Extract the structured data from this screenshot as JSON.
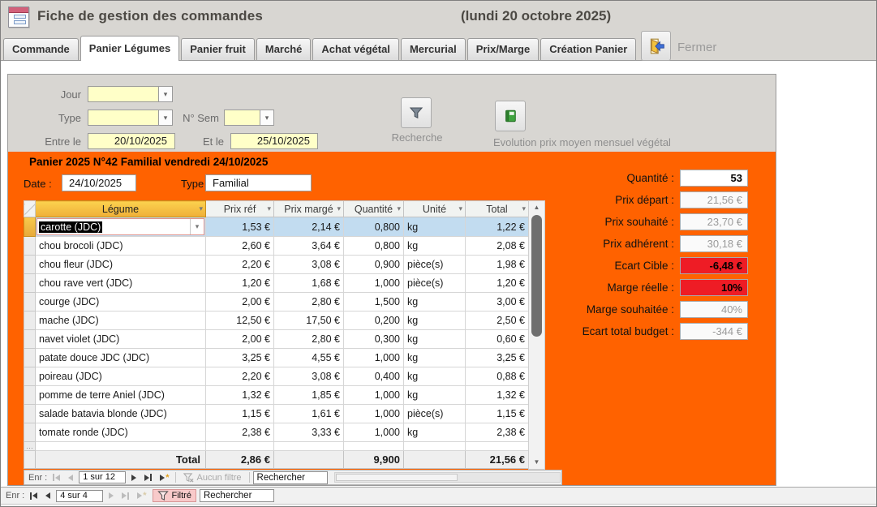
{
  "colors": {
    "accent_orange": "#FF6200",
    "field_yellow": "#FFFFC8",
    "alert_red": "#EE1C25",
    "header_gold": "#F2B93C",
    "selected_blue": "#C2DCF0"
  },
  "header": {
    "title": "Fiche de gestion des commandes",
    "date_note": "(lundi 20 octobre 2025)",
    "close_label": "Fermer"
  },
  "tabs": [
    {
      "label": "Commande",
      "active": false
    },
    {
      "label": "Panier Légumes",
      "active": true
    },
    {
      "label": "Panier fruit",
      "active": false
    },
    {
      "label": "Marché",
      "active": false
    },
    {
      "label": "Achat végétal",
      "active": false
    },
    {
      "label": "Mercurial",
      "active": false
    },
    {
      "label": "Prix/Marge",
      "active": false
    },
    {
      "label": "Création Panier",
      "active": false
    }
  ],
  "filters": {
    "jour_label": "Jour",
    "jour_value": "",
    "type_label": "Type",
    "type_value": "",
    "sem_label": "N° Sem",
    "sem_value": "",
    "entre_label": "Entre le",
    "entre_value": "20/10/2025",
    "et_label": "Et le",
    "et_value": "25/10/2025",
    "recherche_label": "Recherche",
    "evolution_label": "Evolution prix moyen mensuel végétal"
  },
  "panier": {
    "title": "Panier 2025 N°42 Familial vendredi 24/10/2025",
    "date_label": "Date :",
    "date_value": "24/10/2025",
    "type_label": "Type :",
    "type_value": "Familial"
  },
  "table": {
    "columns": [
      "Légume",
      "Prix réf",
      "Prix margé",
      "Quantité",
      "Unité",
      "Total"
    ],
    "rows": [
      {
        "legume": "carotte (JDC)",
        "prix_ref": "1,53 €",
        "prix_marge": "2,14 €",
        "quantite": "0,800",
        "unite": "kg",
        "total": "1,22 €",
        "selected": true
      },
      {
        "legume": "chou brocoli (JDC)",
        "prix_ref": "2,60 €",
        "prix_marge": "3,64 €",
        "quantite": "0,800",
        "unite": "kg",
        "total": "2,08 €",
        "selected": false
      },
      {
        "legume": "chou fleur (JDC)",
        "prix_ref": "2,20 €",
        "prix_marge": "3,08 €",
        "quantite": "0,900",
        "unite": "pièce(s)",
        "total": "1,98 €",
        "selected": false
      },
      {
        "legume": "chou rave vert (JDC)",
        "prix_ref": "1,20 €",
        "prix_marge": "1,68 €",
        "quantite": "1,000",
        "unite": "pièce(s)",
        "total": "1,20 €",
        "selected": false
      },
      {
        "legume": "courge (JDC)",
        "prix_ref": "2,00 €",
        "prix_marge": "2,80 €",
        "quantite": "1,500",
        "unite": "kg",
        "total": "3,00 €",
        "selected": false
      },
      {
        "legume": "mache (JDC)",
        "prix_ref": "12,50 €",
        "prix_marge": "17,50 €",
        "quantite": "0,200",
        "unite": "kg",
        "total": "2,50 €",
        "selected": false
      },
      {
        "legume": "navet violet (JDC)",
        "prix_ref": "2,00 €",
        "prix_marge": "2,80 €",
        "quantite": "0,300",
        "unite": "kg",
        "total": "0,60 €",
        "selected": false
      },
      {
        "legume": "patate douce JDC (JDC)",
        "prix_ref": "3,25 €",
        "prix_marge": "4,55 €",
        "quantite": "1,000",
        "unite": "kg",
        "total": "3,25 €",
        "selected": false
      },
      {
        "legume": "poireau (JDC)",
        "prix_ref": "2,20 €",
        "prix_marge": "3,08 €",
        "quantite": "0,400",
        "unite": "kg",
        "total": "0,88 €",
        "selected": false
      },
      {
        "legume": "pomme de terre Aniel (JDC)",
        "prix_ref": "1,32 €",
        "prix_marge": "1,85 €",
        "quantite": "1,000",
        "unite": "kg",
        "total": "1,32 €",
        "selected": false
      },
      {
        "legume": "salade batavia blonde (JDC)",
        "prix_ref": "1,15 €",
        "prix_marge": "1,61 €",
        "quantite": "1,000",
        "unite": "pièce(s)",
        "total": "1,15 €",
        "selected": false
      },
      {
        "legume": "tomate ronde (JDC)",
        "prix_ref": "2,38 €",
        "prix_marge": "3,33 €",
        "quantite": "1,000",
        "unite": "kg",
        "total": "2,38 €",
        "selected": false
      }
    ],
    "new_row_indicator": "…",
    "total_row": {
      "label": "Total",
      "prix_ref": "2,86 €",
      "quantite": "9,900",
      "total": "21,56 €"
    }
  },
  "summary": {
    "rows": [
      {
        "label": "Quantité :",
        "value": "53",
        "style": "white"
      },
      {
        "label": "Prix départ :",
        "value": "21,56 €",
        "style": "grey"
      },
      {
        "label": "Prix souhaité :",
        "value": "23,70 €",
        "style": "grey"
      },
      {
        "label": "Prix adhérent :",
        "value": "30,18 €",
        "style": "grey"
      },
      {
        "label": "Ecart Cible :",
        "value": "-6,48 €",
        "style": "red"
      },
      {
        "label": "Marge réelle :",
        "value": "10%",
        "style": "red"
      },
      {
        "label": "Marge souhaitée :",
        "value": "40%",
        "style": "grey"
      },
      {
        "label": "Ecart total budget :",
        "value": "-344 €",
        "style": "grey"
      }
    ]
  },
  "subform_nav": {
    "rec_label": "Enr :",
    "position": "1 sur 12",
    "filter_label": "Aucun filtre",
    "search_value": "Rechercher"
  },
  "main_nav": {
    "rec_label": "Enr :",
    "position": "4 sur 4",
    "filter_label": "Filtré",
    "search_value": "Rechercher"
  }
}
